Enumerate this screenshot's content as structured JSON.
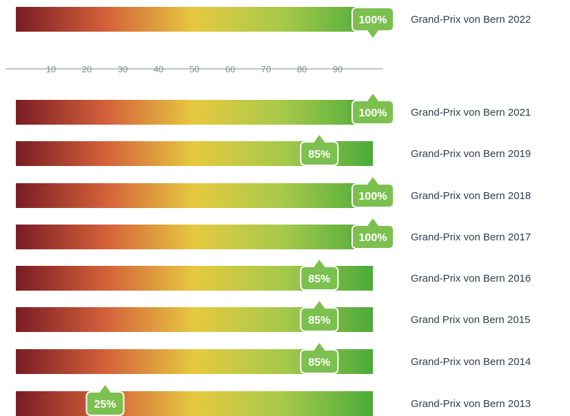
{
  "chart_data": {
    "type": "bar",
    "categories": [
      "Grand-Prix von Bern 2022",
      "Grand-Prix von Bern 2021",
      "Grand-Prix von Bern 2019",
      "Grand-Prix von Bern 2018",
      "Grand-Prix von Bern 2017",
      "Grand-Prix von Bern 2016",
      "Grand Prix von Bern 2015",
      "Grand-Prix von Bern 2014",
      "Grand-Prix von Bern 2013"
    ],
    "values": [
      100,
      100,
      85,
      100,
      100,
      85,
      85,
      85,
      25
    ],
    "value_labels": [
      "100%",
      "100%",
      "85%",
      "100%",
      "100%",
      "85%",
      "85%",
      "85%",
      "25%"
    ],
    "xlim": [
      0,
      100
    ],
    "ticks": [
      10,
      20,
      30,
      40,
      50,
      60,
      70,
      80,
      90
    ],
    "tick_labels": [
      "10",
      "20",
      "30",
      "40",
      "50",
      "60",
      "70",
      "80",
      "90"
    ],
    "gradient_colors": [
      "#7a1c24",
      "#d4603a",
      "#e6c940",
      "#a6c94a",
      "#4caa3a"
    ],
    "badge_color": "#7cc04f"
  }
}
